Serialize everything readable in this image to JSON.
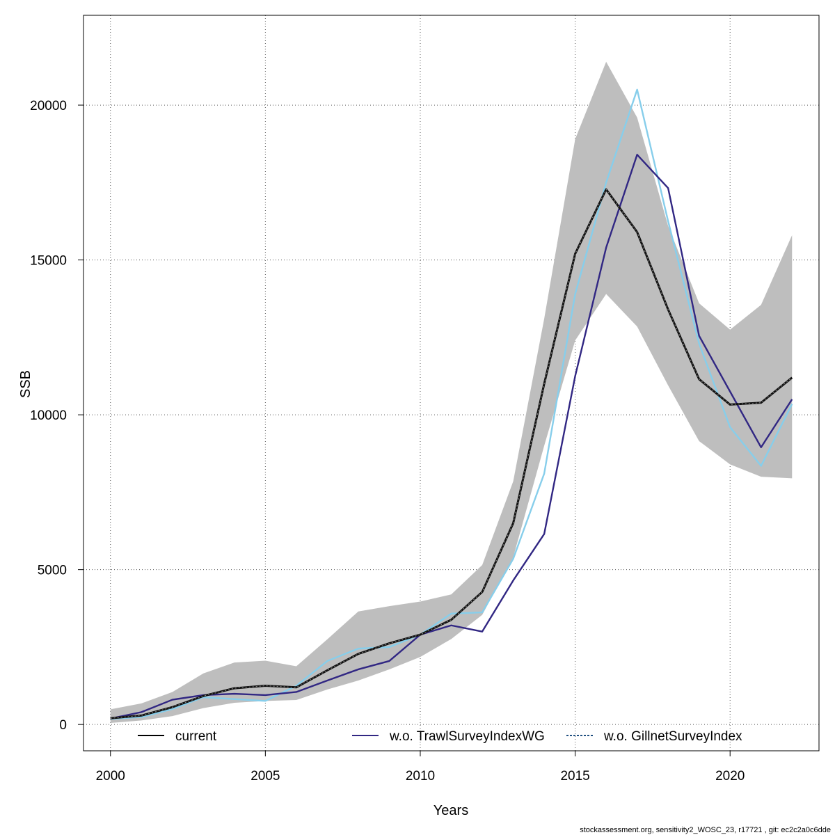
{
  "chart_data": {
    "type": "line",
    "xlabel": "Years",
    "ylabel": "SSB",
    "xlim": [
      1999.13,
      2022.87
    ],
    "ylim": [
      -850,
      22900
    ],
    "x_ticks": [
      2000,
      2005,
      2010,
      2015,
      2020
    ],
    "y_ticks": [
      0,
      5000,
      10000,
      15000,
      20000
    ],
    "grid": true,
    "x": [
      2000,
      2001,
      2002,
      2003,
      2004,
      2005,
      2006,
      2007,
      2008,
      2009,
      2010,
      2011,
      2012,
      2013,
      2014,
      2015,
      2016,
      2017,
      2018,
      2019,
      2020,
      2021,
      2022
    ],
    "confidence_band": {
      "color": "#bebebe",
      "lower": [
        50,
        130,
        270,
        530,
        700,
        760,
        790,
        1130,
        1420,
        1780,
        2180,
        2760,
        3540,
        5400,
        9000,
        12400,
        13900,
        12850,
        10950,
        9150,
        8400,
        8000,
        7950
      ],
      "upper": [
        490,
        680,
        1050,
        1650,
        2000,
        2060,
        1880,
        2750,
        3650,
        3820,
        3970,
        4200,
        5150,
        7850,
        13100,
        18900,
        21400,
        19600,
        16100,
        13600,
        12750,
        13550,
        15800
      ]
    },
    "series": [
      {
        "name": "current",
        "color": "#222222",
        "style": "dashed-black",
        "values": [
          200,
          290,
          560,
          920,
          1170,
          1250,
          1200,
          1750,
          2280,
          2620,
          2900,
          3380,
          4280,
          6500,
          11000,
          15200,
          17280,
          15900,
          13400,
          11150,
          10330,
          10390,
          11200
        ]
      },
      {
        "name": "w.o. TrawlSurveyIndexWG",
        "color": "#312783",
        "style": "solid",
        "values": [
          190,
          400,
          800,
          950,
          990,
          950,
          1050,
          1420,
          1780,
          2050,
          2900,
          3200,
          3000,
          4650,
          6150,
          11250,
          15400,
          18400,
          17320,
          12550,
          10750,
          8950,
          10500
        ]
      },
      {
        "name": "w.o. GillnetSurveyIndex",
        "color": "#87ceeb",
        "style": "solid",
        "values": [
          180,
          240,
          500,
          880,
          820,
          760,
          1250,
          2050,
          2450,
          2500,
          2900,
          3580,
          3620,
          5350,
          8100,
          13900,
          17500,
          20500,
          16250,
          12300,
          9600,
          8350,
          10350
        ]
      }
    ]
  },
  "legend": {
    "items": [
      {
        "label": "current",
        "color": "#000000"
      },
      {
        "label": "w.o. TrawlSurveyIndexWG",
        "color": "#312783"
      },
      {
        "label": "w.o. GillnetSurveyIndex",
        "color": "#1f4f80"
      }
    ]
  },
  "footer": {
    "text": "stockassessment.org, sensitivity2_WOSC_23, r17721 , git: ec2c2a0c6dde"
  }
}
